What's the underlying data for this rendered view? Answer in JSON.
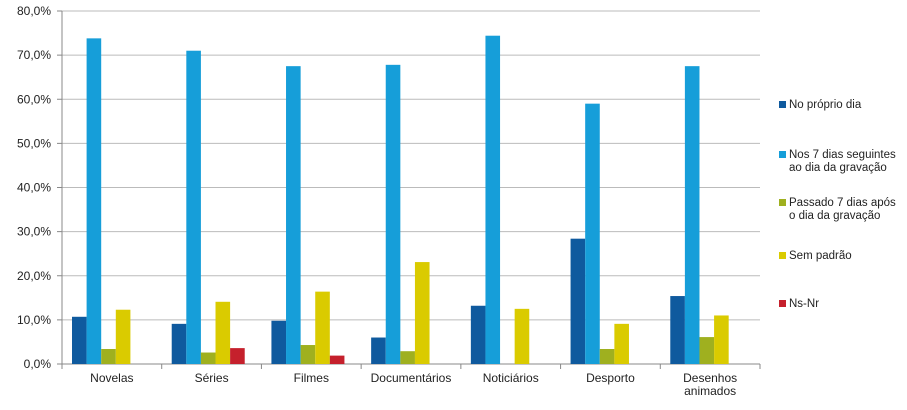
{
  "chart_data": {
    "type": "bar",
    "title": "",
    "xlabel": "",
    "ylabel": "",
    "ylim": [
      0,
      80
    ],
    "yticks": [
      0,
      10,
      20,
      30,
      40,
      50,
      60,
      70,
      80
    ],
    "ytick_labels": [
      "0,0%",
      "10,0%",
      "20,0%",
      "30,0%",
      "40,0%",
      "50,0%",
      "60,0%",
      "70,0%",
      "80,0%"
    ],
    "grid": true,
    "legend_position": "right",
    "categories": [
      [
        "Novelas"
      ],
      [
        "Séries"
      ],
      [
        "Filmes"
      ],
      [
        "Documentários"
      ],
      [
        "Noticiários"
      ],
      [
        "Desporto"
      ],
      [
        "Desenhos",
        "animados"
      ]
    ],
    "series": [
      {
        "name": [
          "No próprio dia"
        ],
        "color": "#0F5A9E",
        "values": [
          10.7,
          9.1,
          9.8,
          6.0,
          13.2,
          28.4,
          15.4
        ]
      },
      {
        "name": [
          "Nos 7 dias seguintes",
          "ao dia da gravação"
        ],
        "color": "#169ED9",
        "values": [
          73.8,
          71.0,
          67.5,
          67.8,
          74.4,
          59.0,
          67.5
        ]
      },
      {
        "name": [
          "Passado 7 dias após",
          "o  dia da gravação"
        ],
        "color": "#9FB01F",
        "values": [
          3.4,
          2.6,
          4.3,
          2.9,
          0.0,
          3.4,
          6.1
        ]
      },
      {
        "name": [
          "Sem padrão"
        ],
        "color": "#DACB00",
        "values": [
          12.3,
          14.1,
          16.4,
          23.1,
          12.5,
          9.1,
          11.0
        ]
      },
      {
        "name": [
          "Ns-Nr"
        ],
        "color": "#C5202C",
        "values": [
          0.0,
          3.6,
          1.9,
          0.0,
          0.0,
          0.0,
          0.0
        ]
      }
    ]
  }
}
